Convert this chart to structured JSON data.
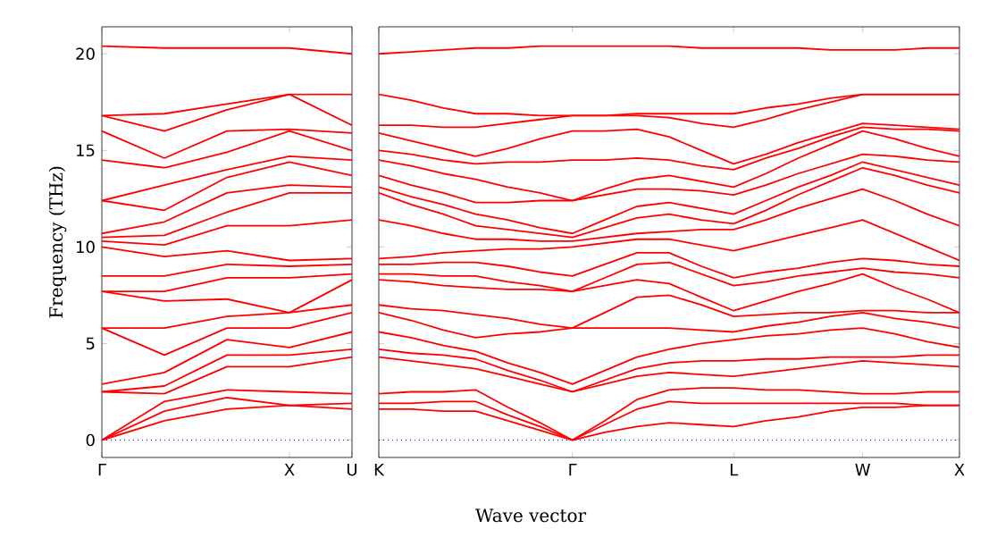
{
  "chart_data": [
    {
      "type": "line",
      "ylabel": "Frequency (THz)",
      "categories": [
        "Γ",
        null,
        null,
        "X",
        "U"
      ],
      "ylim": [
        -0.9,
        21.4
      ],
      "yticks": [
        0,
        5,
        10,
        15,
        20
      ],
      "line_style": "solid",
      "ref_lines": [
        {
          "axis": "y",
          "value": 0,
          "color": "#0000ff",
          "line_style": "dotted"
        }
      ],
      "series": [
        {
          "color": "#ff0000",
          "values": [
            0,
            1.0,
            1.6,
            1.8,
            1.6
          ]
        },
        {
          "color": "#ff0000",
          "values": [
            0,
            1.5,
            2.2,
            1.8,
            1.9
          ]
        },
        {
          "color": "#ff0000",
          "values": [
            0,
            2.0,
            2.6,
            2.5,
            2.4
          ]
        },
        {
          "color": "#ff0000",
          "values": [
            2.5,
            2.4,
            3.8,
            3.8,
            4.3
          ]
        },
        {
          "color": "#ff0000",
          "values": [
            2.5,
            2.8,
            4.4,
            4.4,
            4.7
          ]
        },
        {
          "color": "#ff0000",
          "values": [
            2.9,
            3.5,
            5.2,
            4.8,
            5.6
          ]
        },
        {
          "color": "#ff0000",
          "values": [
            5.8,
            4.4,
            5.8,
            5.8,
            6.6
          ]
        },
        {
          "color": "#ff0000",
          "values": [
            5.8,
            5.8,
            6.4,
            6.6,
            7.0
          ]
        },
        {
          "color": "#ff0000",
          "values": [
            7.7,
            7.2,
            7.3,
            6.6,
            8.3
          ]
        },
        {
          "color": "#ff0000",
          "values": [
            7.7,
            7.7,
            8.4,
            8.4,
            8.6
          ]
        },
        {
          "color": "#ff0000",
          "values": [
            8.5,
            8.5,
            9.1,
            9.0,
            9.1
          ]
        },
        {
          "color": "#ff0000",
          "values": [
            10.0,
            9.5,
            9.8,
            9.3,
            9.4
          ]
        },
        {
          "color": "#ff0000",
          "values": [
            10.3,
            10.1,
            11.1,
            11.1,
            11.4
          ]
        },
        {
          "color": "#ff0000",
          "values": [
            10.5,
            10.6,
            11.8,
            12.8,
            12.8
          ]
        },
        {
          "color": "#ff0000",
          "values": [
            10.7,
            11.3,
            12.8,
            13.2,
            13.1
          ]
        },
        {
          "color": "#ff0000",
          "values": [
            12.4,
            11.9,
            13.6,
            14.4,
            13.7
          ]
        },
        {
          "color": "#ff0000",
          "values": [
            12.4,
            13.2,
            14.0,
            14.7,
            14.5
          ]
        },
        {
          "color": "#ff0000",
          "values": [
            14.5,
            14.1,
            14.9,
            16.0,
            15.0
          ]
        },
        {
          "color": "#ff0000",
          "values": [
            16.0,
            14.6,
            16.0,
            16.1,
            15.9
          ]
        },
        {
          "color": "#ff0000",
          "values": [
            16.8,
            16.0,
            17.1,
            17.9,
            16.3
          ]
        },
        {
          "color": "#ff0000",
          "values": [
            16.8,
            16.9,
            17.4,
            17.9,
            17.9
          ]
        },
        {
          "color": "#ff0000",
          "values": [
            20.4,
            20.3,
            20.3,
            20.3,
            20.0
          ]
        }
      ]
    },
    {
      "type": "line",
      "xlabel": "Wave vector",
      "categories": [
        "K",
        null,
        null,
        null,
        null,
        null,
        "Γ",
        null,
        null,
        null,
        null,
        "L",
        null,
        null,
        null,
        "W",
        null,
        null,
        "X"
      ],
      "ylim": [
        -0.9,
        21.4
      ],
      "yticks": [
        0,
        5,
        10,
        15,
        20
      ],
      "tick_labels": "x",
      "line_style": "solid",
      "ref_lines": [
        {
          "axis": "y",
          "value": 0,
          "color": "#0000ff",
          "line_style": "dotted"
        }
      ],
      "series": [
        {
          "color": "#ff0000",
          "values": [
            1.6,
            1.6,
            1.5,
            1.5,
            1.0,
            0.5,
            0,
            0.4,
            0.7,
            0.9,
            0.8,
            0.7,
            1.0,
            1.2,
            1.5,
            1.7,
            1.7,
            1.8,
            1.8
          ]
        },
        {
          "color": "#ff0000",
          "values": [
            1.9,
            1.9,
            2.0,
            2.0,
            1.3,
            0.7,
            0,
            0.8,
            1.6,
            2.0,
            1.9,
            1.9,
            1.9,
            1.9,
            1.9,
            1.9,
            1.9,
            1.8,
            1.8
          ]
        },
        {
          "color": "#ff0000",
          "values": [
            2.4,
            2.5,
            2.5,
            2.6,
            1.7,
            0.9,
            0,
            1.0,
            2.1,
            2.6,
            2.7,
            2.7,
            2.6,
            2.6,
            2.5,
            2.4,
            2.4,
            2.5,
            2.5
          ]
        },
        {
          "color": "#ff0000",
          "values": [
            4.3,
            4.1,
            3.9,
            3.7,
            3.3,
            2.9,
            2.5,
            2.9,
            3.3,
            3.5,
            3.4,
            3.3,
            3.5,
            3.7,
            3.9,
            4.1,
            4.0,
            3.9,
            3.8
          ]
        },
        {
          "color": "#ff0000",
          "values": [
            4.7,
            4.5,
            4.4,
            4.2,
            3.6,
            3.1,
            2.5,
            3.1,
            3.7,
            4.0,
            4.1,
            4.1,
            4.2,
            4.2,
            4.3,
            4.3,
            4.3,
            4.4,
            4.4
          ]
        },
        {
          "color": "#ff0000",
          "values": [
            5.6,
            5.3,
            4.9,
            4.6,
            4.0,
            3.5,
            2.9,
            3.6,
            4.3,
            4.7,
            5.0,
            5.2,
            5.4,
            5.5,
            5.7,
            5.8,
            5.5,
            5.1,
            4.8
          ]
        },
        {
          "color": "#ff0000",
          "values": [
            6.6,
            6.2,
            5.7,
            5.3,
            5.5,
            5.6,
            5.8,
            5.8,
            5.8,
            5.8,
            5.7,
            5.6,
            5.9,
            6.1,
            6.4,
            6.6,
            6.3,
            6.1,
            5.8
          ]
        },
        {
          "color": "#ff0000",
          "values": [
            7.0,
            6.8,
            6.7,
            6.5,
            6.3,
            6.0,
            5.8,
            6.6,
            7.4,
            7.5,
            7.0,
            6.4,
            6.5,
            6.6,
            6.6,
            6.7,
            6.7,
            6.6,
            6.6
          ]
        },
        {
          "color": "#ff0000",
          "values": [
            8.3,
            8.2,
            8.0,
            7.9,
            7.8,
            7.8,
            7.7,
            8.0,
            8.3,
            8.1,
            7.4,
            6.7,
            7.2,
            7.7,
            8.1,
            8.6,
            7.9,
            7.3,
            6.6
          ]
        },
        {
          "color": "#ff0000",
          "values": [
            8.6,
            8.6,
            8.5,
            8.5,
            8.2,
            8.0,
            7.7,
            8.4,
            9.1,
            9.2,
            8.6,
            8.0,
            8.2,
            8.5,
            8.7,
            8.9,
            8.7,
            8.6,
            8.4
          ]
        },
        {
          "color": "#ff0000",
          "values": [
            9.1,
            9.1,
            9.2,
            9.2,
            9.0,
            8.7,
            8.5,
            9.1,
            9.7,
            9.7,
            9.0,
            8.4,
            8.7,
            8.9,
            9.2,
            9.4,
            9.3,
            9.1,
            9.0
          ]
        },
        {
          "color": "#ff0000",
          "values": [
            9.4,
            9.5,
            9.7,
            9.8,
            9.9,
            9.9,
            10.0,
            10.2,
            10.4,
            10.4,
            10.1,
            9.8,
            10.2,
            10.6,
            11.0,
            11.4,
            10.7,
            10.0,
            9.3
          ]
        },
        {
          "color": "#ff0000",
          "values": [
            11.4,
            11.1,
            10.7,
            10.4,
            10.4,
            10.3,
            10.3,
            10.5,
            10.7,
            10.8,
            10.9,
            10.9,
            11.4,
            12.0,
            12.5,
            13.0,
            12.4,
            11.7,
            11.1
          ]
        },
        {
          "color": "#ff0000",
          "values": [
            12.8,
            12.2,
            11.7,
            11.1,
            10.9,
            10.7,
            10.5,
            11.0,
            11.5,
            11.7,
            11.4,
            11.2,
            11.9,
            12.7,
            13.4,
            14.1,
            13.7,
            13.2,
            12.8
          ]
        },
        {
          "color": "#ff0000",
          "values": [
            13.1,
            12.6,
            12.2,
            11.7,
            11.4,
            11.0,
            10.7,
            11.4,
            12.1,
            12.3,
            12.0,
            11.7,
            12.4,
            13.1,
            13.7,
            14.4,
            14.0,
            13.6,
            13.2
          ]
        },
        {
          "color": "#ff0000",
          "values": [
            13.7,
            13.2,
            12.8,
            12.3,
            12.3,
            12.4,
            12.4,
            12.7,
            13.0,
            13.0,
            12.9,
            12.7,
            13.2,
            13.8,
            14.3,
            14.8,
            14.7,
            14.5,
            14.4
          ]
        },
        {
          "color": "#ff0000",
          "values": [
            14.5,
            14.2,
            13.8,
            13.5,
            13.1,
            12.8,
            12.4,
            13.0,
            13.5,
            13.7,
            13.4,
            13.1,
            13.8,
            14.6,
            15.3,
            16.0,
            15.6,
            15.1,
            14.7
          ]
        },
        {
          "color": "#ff0000",
          "values": [
            15.0,
            14.8,
            14.5,
            14.3,
            14.4,
            14.4,
            14.5,
            14.5,
            14.6,
            14.5,
            14.2,
            14.0,
            14.6,
            15.1,
            15.7,
            16.2,
            16.1,
            16.1,
            16.0
          ]
        },
        {
          "color": "#ff0000",
          "values": [
            15.9,
            15.5,
            15.1,
            14.7,
            15.1,
            15.6,
            16.0,
            16.0,
            16.1,
            15.7,
            15.0,
            14.3,
            14.8,
            15.4,
            15.9,
            16.4,
            16.3,
            16.2,
            16.1
          ]
        },
        {
          "color": "#ff0000",
          "values": [
            16.3,
            16.3,
            16.2,
            16.2,
            16.4,
            16.6,
            16.8,
            16.8,
            16.8,
            16.7,
            16.4,
            16.2,
            16.6,
            17.1,
            17.5,
            17.9,
            17.9,
            17.9,
            17.9
          ]
        },
        {
          "color": "#ff0000",
          "values": [
            17.9,
            17.6,
            17.2,
            16.9,
            16.9,
            16.8,
            16.8,
            16.8,
            16.9,
            16.9,
            16.9,
            16.9,
            17.2,
            17.4,
            17.7,
            17.9,
            17.9,
            17.9,
            17.9
          ]
        },
        {
          "color": "#ff0000",
          "values": [
            20.0,
            20.1,
            20.2,
            20.3,
            20.3,
            20.4,
            20.4,
            20.4,
            20.4,
            20.4,
            20.3,
            20.3,
            20.3,
            20.3,
            20.2,
            20.2,
            20.2,
            20.3,
            20.3
          ]
        }
      ]
    }
  ]
}
